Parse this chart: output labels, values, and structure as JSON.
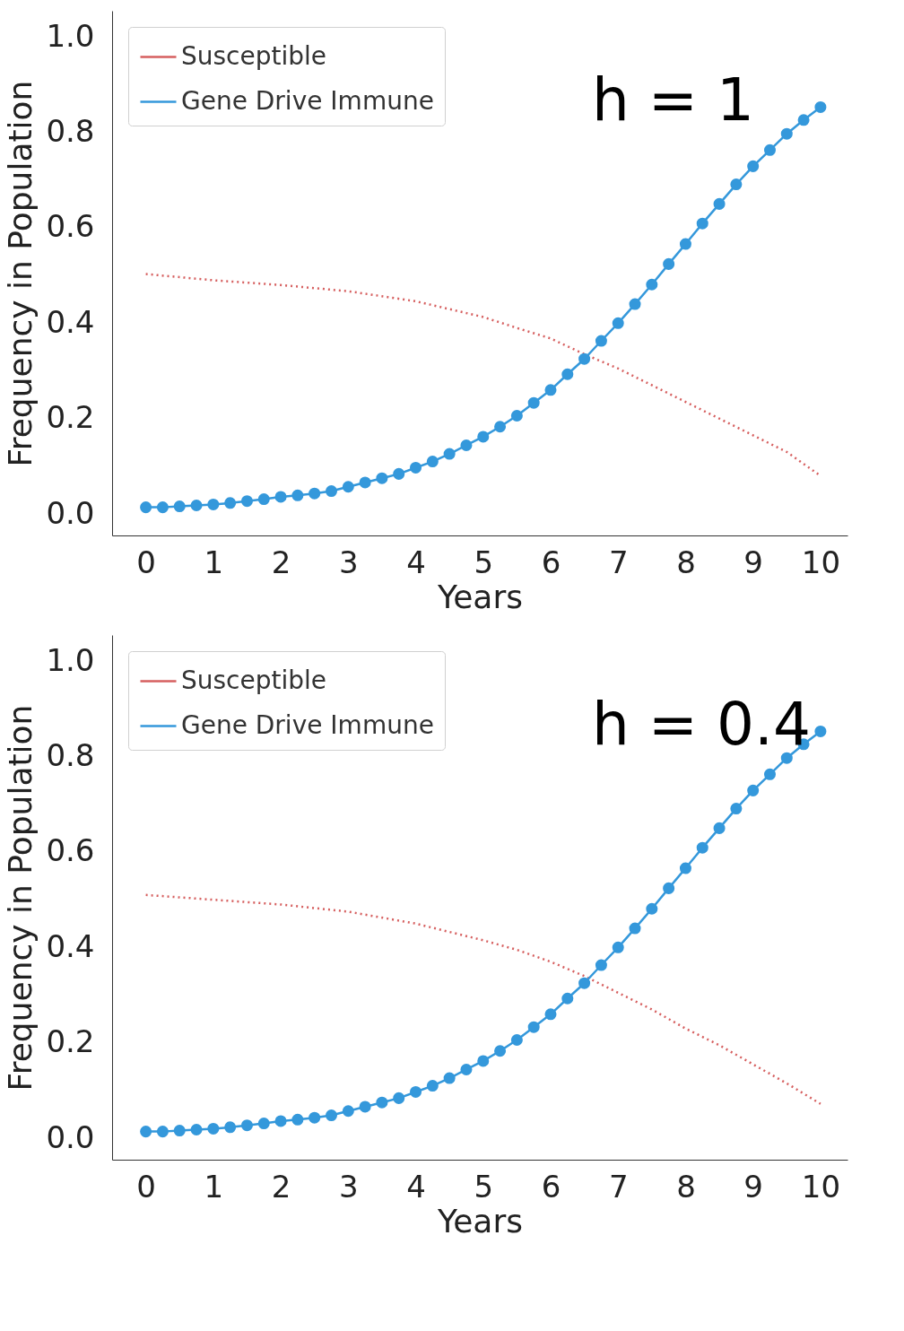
{
  "chart_data": [
    {
      "type": "line",
      "annotations": [
        "h = 1"
      ],
      "xlabel": "Years",
      "ylabel": "Frequency in Population",
      "xlim": [
        -0.5,
        10.4
      ],
      "ylim": [
        -0.045,
        1.055
      ],
      "xticks": [
        0,
        1,
        2,
        3,
        4,
        5,
        6,
        7,
        8,
        9,
        10
      ],
      "yticks": [
        {
          "value": 0,
          "label": "0.0"
        },
        {
          "value": 0.2,
          "label": "0.2"
        },
        {
          "value": 0.4,
          "label": "0.4"
        },
        {
          "value": 0.6,
          "label": "0.6"
        },
        {
          "value": 0.8,
          "label": "0.8"
        },
        {
          "value": 1,
          "label": "1.0"
        }
      ],
      "grid": false,
      "legend": "top left",
      "series": [
        {
          "name": "Susceptible",
          "color": "#d65f5f",
          "line_style": "dotted",
          "marker": "none",
          "x": [
            0,
            1,
            2,
            3,
            4,
            5,
            5.5,
            6,
            6.5,
            7,
            7.5,
            8,
            8.5,
            9,
            9.5,
            10
          ],
          "values": [
            0.503,
            0.49,
            0.48,
            0.467,
            0.446,
            0.413,
            0.39,
            0.368,
            0.335,
            0.305,
            0.27,
            0.235,
            0.2,
            0.165,
            0.13,
            0.08
          ]
        },
        {
          "name": "Gene Drive Immune",
          "color": "#3498db",
          "line_style": "solid",
          "marker": "circle",
          "x": [
            0,
            0.25,
            0.5,
            0.75,
            1,
            1.25,
            1.5,
            1.75,
            2,
            2.25,
            2.5,
            2.75,
            3,
            3.25,
            3.5,
            3.75,
            4,
            4.25,
            4.5,
            4.75,
            5,
            5.25,
            5.5,
            5.75,
            6,
            6.25,
            6.5,
            6.75,
            7,
            7.25,
            7.5,
            7.75,
            8,
            8.25,
            8.5,
            8.75,
            9,
            9.25,
            9.5,
            9.75,
            10
          ],
          "values": [
            0.014,
            0.014,
            0.016,
            0.018,
            0.02,
            0.023,
            0.027,
            0.031,
            0.036,
            0.039,
            0.043,
            0.048,
            0.057,
            0.066,
            0.075,
            0.084,
            0.097,
            0.11,
            0.126,
            0.144,
            0.162,
            0.183,
            0.206,
            0.233,
            0.26,
            0.293,
            0.325,
            0.363,
            0.4,
            0.44,
            0.481,
            0.524,
            0.566,
            0.609,
            0.65,
            0.691,
            0.729,
            0.763,
            0.797,
            0.826,
            0.853
          ]
        }
      ]
    },
    {
      "type": "line",
      "annotations": [
        "h = 0.4"
      ],
      "xlabel": "Years",
      "ylabel": "Frequency in Population",
      "xlim": [
        -0.5,
        10.4
      ],
      "ylim": [
        -0.045,
        1.055
      ],
      "xticks": [
        0,
        1,
        2,
        3,
        4,
        5,
        6,
        7,
        8,
        9,
        10
      ],
      "yticks": [
        {
          "value": 0,
          "label": "0.0"
        },
        {
          "value": 0.2,
          "label": "0.2"
        },
        {
          "value": 0.4,
          "label": "0.4"
        },
        {
          "value": 0.6,
          "label": "0.6"
        },
        {
          "value": 0.8,
          "label": "0.8"
        },
        {
          "value": 1,
          "label": "1.0"
        }
      ],
      "grid": false,
      "legend": "top left",
      "series": [
        {
          "name": "Susceptible",
          "color": "#d65f5f",
          "line_style": "dotted",
          "marker": "none",
          "x": [
            0,
            1,
            2,
            3,
            4,
            5,
            5.5,
            6,
            6.5,
            7,
            7.5,
            8,
            8.5,
            9,
            9.5,
            10
          ],
          "values": [
            0.51,
            0.5,
            0.49,
            0.475,
            0.45,
            0.415,
            0.395,
            0.37,
            0.34,
            0.305,
            0.27,
            0.23,
            0.195,
            0.155,
            0.115,
            0.072
          ]
        },
        {
          "name": "Gene Drive Immune",
          "color": "#3498db",
          "line_style": "solid",
          "marker": "circle",
          "x": [
            0,
            0.25,
            0.5,
            0.75,
            1,
            1.25,
            1.5,
            1.75,
            2,
            2.25,
            2.5,
            2.75,
            3,
            3.25,
            3.5,
            3.75,
            4,
            4.25,
            4.5,
            4.75,
            5,
            5.25,
            5.5,
            5.75,
            6,
            6.25,
            6.5,
            6.75,
            7,
            7.25,
            7.5,
            7.75,
            8,
            8.25,
            8.5,
            8.75,
            9,
            9.25,
            9.5,
            9.75,
            10
          ],
          "values": [
            0.014,
            0.014,
            0.016,
            0.018,
            0.02,
            0.023,
            0.027,
            0.031,
            0.036,
            0.039,
            0.043,
            0.048,
            0.057,
            0.066,
            0.075,
            0.084,
            0.097,
            0.11,
            0.126,
            0.144,
            0.162,
            0.183,
            0.206,
            0.233,
            0.26,
            0.293,
            0.325,
            0.363,
            0.4,
            0.44,
            0.481,
            0.524,
            0.566,
            0.609,
            0.65,
            0.691,
            0.729,
            0.763,
            0.797,
            0.826,
            0.853
          ]
        }
      ]
    }
  ]
}
